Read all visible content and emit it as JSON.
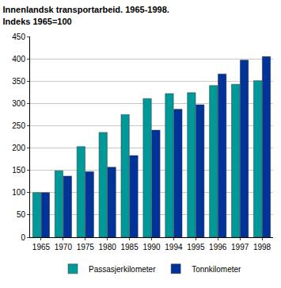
{
  "chart_data": {
    "type": "bar",
    "title": "Innenlandsk transportarbeid. 1965-1998.",
    "subtitle": "Indeks 1965=100",
    "categories": [
      "1965",
      "1970",
      "1975",
      "1980",
      "1985",
      "1990",
      "1994",
      "1995",
      "1996",
      "1997",
      "1998"
    ],
    "series": [
      {
        "name": "Passasjerkilometer",
        "color": "#009999",
        "values": [
          100,
          149,
          203,
          235,
          275,
          311,
          322,
          324,
          340,
          343,
          351
        ]
      },
      {
        "name": "Tonnkilometer",
        "color": "#003399",
        "values": [
          100,
          137,
          147,
          157,
          183,
          240,
          287,
          297,
          366,
          397,
          405
        ]
      }
    ],
    "ylim": [
      0,
      450
    ],
    "yticks": [
      0,
      50,
      100,
      150,
      200,
      250,
      300,
      350,
      400,
      450
    ],
    "grid": true,
    "legend": "bottom"
  }
}
